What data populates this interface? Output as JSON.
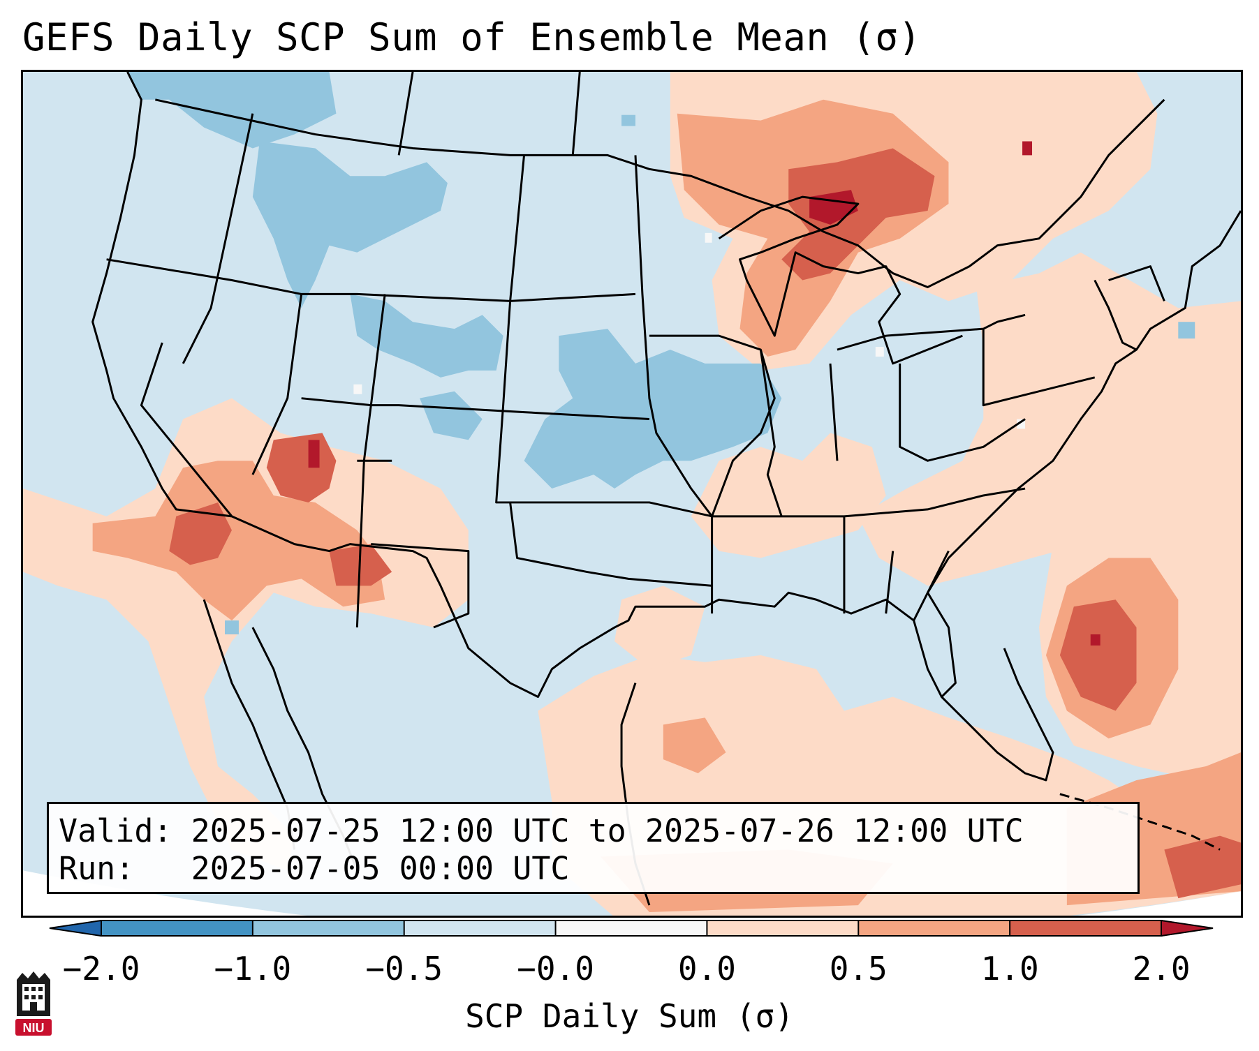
{
  "title": "GEFS Daily SCP Sum of Ensemble Mean (σ)",
  "info": {
    "valid_label": "Valid:",
    "valid_range": "2025-07-25 12:00 UTC to 2025-07-26 12:00 UTC",
    "run_label": "Run:",
    "run_time": "2025-07-05 00:00 UTC"
  },
  "colorbar": {
    "label": "SCP Daily Sum (σ)",
    "ticks": [
      "−2.0",
      "−1.0",
      "−0.5",
      "−0.0",
      "0.0",
      "0.5",
      "1.0",
      "2.0"
    ],
    "bins": [
      {
        "range": "< -2.0",
        "color": "#2166ac"
      },
      {
        "range": "-2.0 to -1.0",
        "color": "#4393c3"
      },
      {
        "range": "-1.0 to -0.5",
        "color": "#92c5de"
      },
      {
        "range": "-0.5 to -0.0",
        "color": "#d1e5f0"
      },
      {
        "range": "-0.0 to 0.0",
        "color": "#f7f7f7"
      },
      {
        "range": "0.0 to 0.5",
        "color": "#fddbc7"
      },
      {
        "range": "0.5 to 1.0",
        "color": "#f4a582"
      },
      {
        "range": "1.0 to 2.0",
        "color": "#d6604d"
      },
      {
        "range": "> 2.0",
        "color": "#b2182b"
      }
    ]
  },
  "map": {
    "region": "Contiguous United States",
    "background_color": "#d1e5f0",
    "anomaly_regions": [
      {
        "name": "Upper Great Lakes / Ontario",
        "level": "1.0 to 2.0",
        "color": "#d6604d"
      },
      {
        "name": "Lake Superior core",
        "level": "> 2.0",
        "color": "#b2182b"
      },
      {
        "name": "Desert Southwest",
        "level": "0.5 to 1.0",
        "color": "#f4a582"
      },
      {
        "name": "Southern Nevada / Utah",
        "level": "1.0 to 2.0",
        "color": "#d6604d"
      },
      {
        "name": "Western Atlantic off Carolinas",
        "level": "1.0 to 2.0",
        "color": "#d6604d"
      },
      {
        "name": "Gulf of Mexico",
        "level": "0.0 to 0.5",
        "color": "#fddbc7"
      },
      {
        "name": "Northern Rockies / Idaho",
        "level": "-1.0 to -0.5",
        "color": "#92c5de"
      },
      {
        "name": "Central Plains / Nebraska / Iowa",
        "level": "-1.0 to -0.5",
        "color": "#92c5de"
      }
    ]
  },
  "logo": {
    "text": "NIU"
  }
}
